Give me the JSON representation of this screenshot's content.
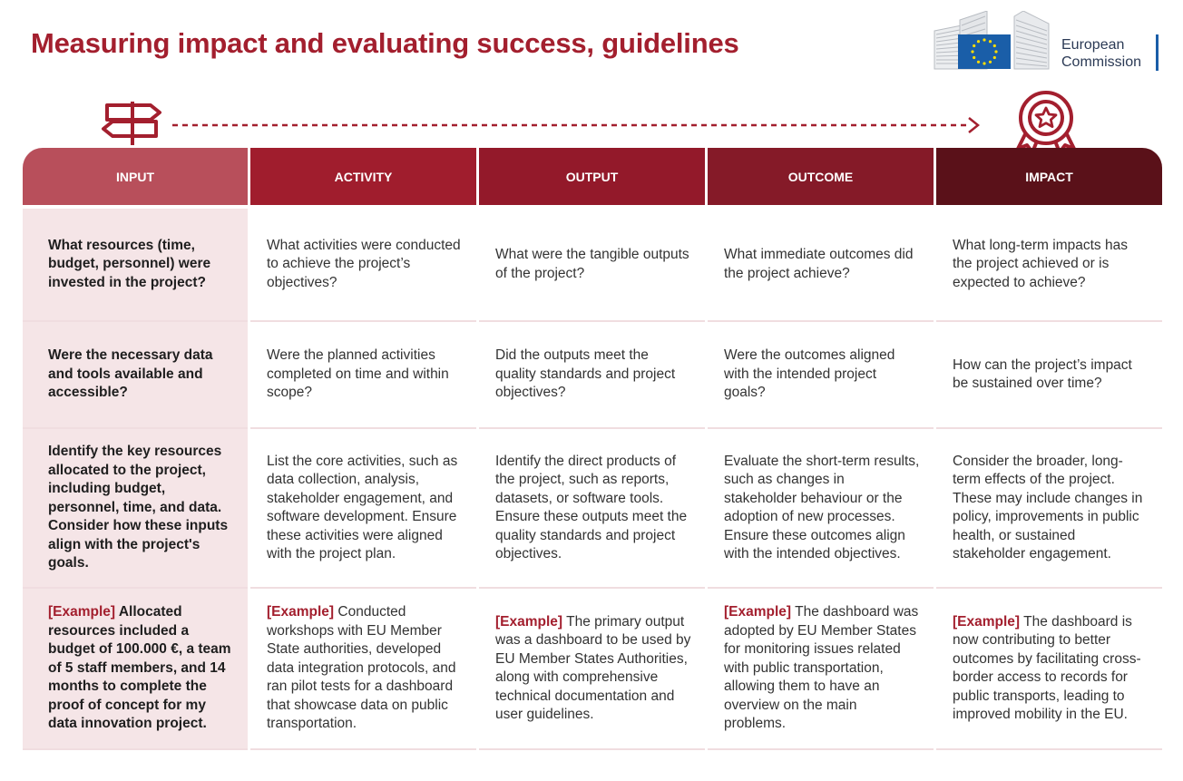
{
  "title": "Measuring impact and evaluating success, guidelines",
  "logo": {
    "line1": "European",
    "line2": "Commission"
  },
  "colors": {
    "title": "#a31f2e",
    "input_header": "#b84f5b",
    "activity_header": "#a01d2d",
    "output_header": "#93192a",
    "outcome_header": "#851a28",
    "impact_header": "#5a1119",
    "eu_blue": "#1a5ea8",
    "eu_star": "#ffdd00"
  },
  "icons": {
    "start": "signpost-icon",
    "end": "award-ribbon-icon",
    "connector": "dashed-arrow"
  },
  "columns": [
    "INPUT",
    "ACTIVITY",
    "OUTPUT",
    "OUTCOME",
    "IMPACT"
  ],
  "example_label": "[Example]",
  "rows": [
    {
      "input": "What resources (time, budget, personnel) were invested in the project?",
      "activity": "What activities were conducted to achieve the project’s objectives?",
      "output": "What were the tangible outputs of the project?",
      "outcome": "What immediate outcomes did the project achieve?",
      "impact": "What long-term impacts has the project achieved or is expected to achieve?"
    },
    {
      "input": "Were the necessary data and tools available and accessible?",
      "activity": "Were the planned activities completed on time and within scope?",
      "output": "Did the outputs meet the quality standards and project objectives?",
      "outcome": "Were the outcomes aligned with the intended project goals?",
      "impact": "How can the project’s impact be sustained over time?"
    },
    {
      "input": "Identify the key resources allocated to the project, including budget, personnel, time, and data. Consider how these inputs align with the project's goals.",
      "activity": "List the core activities, such as data collection, analysis, stakeholder engagement, and software development. Ensure these activities were aligned with the project plan.",
      "output": "Identify the direct products of the project, such as reports, datasets, or software tools. Ensure these outputs meet the quality standards and project objectives.",
      "outcome": "Evaluate the short-term results, such as changes in stakeholder behaviour or the adoption of new processes. Ensure these outcomes align with the intended objectives.",
      "impact": "Consider the broader, long-term effects of the project. These may include changes in policy, improvements in public health, or sustained stakeholder engagement."
    },
    {
      "input": " Allocated resources included a budget of 100.000 €, a team of 5 staff members, and 14 months to complete the proof of concept for my data innovation project.",
      "activity": " Conducted workshops with EU Member State authorities, developed data integration protocols, and ran pilot tests for a dashboard that showcase data on public transportation.",
      "output": " The primary output was a dashboard to be used by EU Member States Authorities, along with comprehensive technical documentation and user guidelines.",
      "outcome": " The dashboard was adopted by EU Member States for monitoring issues related with public transportation, allowing them to have an overview on the main problems.",
      "impact": " The dashboard is now contributing to better outcomes by facilitating cross-border access to records for public transports, leading to improved mobility in the EU."
    }
  ]
}
